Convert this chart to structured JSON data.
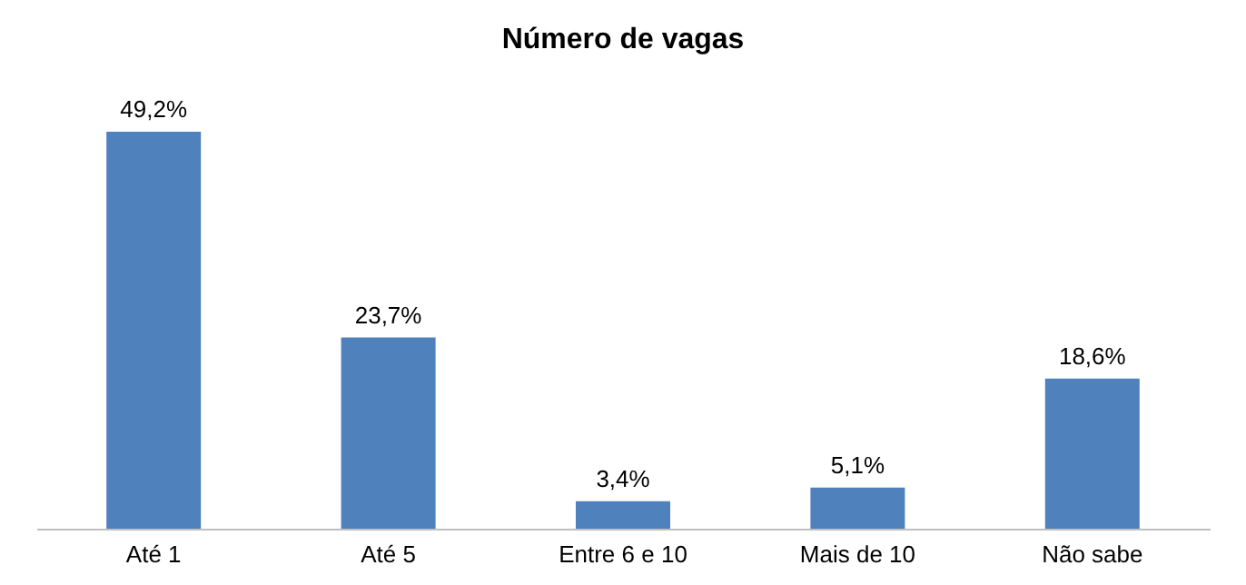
{
  "chart_data": {
    "type": "bar",
    "title": "Número de vagas",
    "categories": [
      "Até 1",
      "Até 5",
      "Entre 6 e 10",
      "Mais de 10",
      "Não sabe"
    ],
    "values": [
      49.2,
      23.7,
      3.4,
      5.1,
      18.6
    ],
    "value_labels": [
      "49,2%",
      "23,7%",
      "3,4%",
      "5,1%",
      "18,6%"
    ],
    "tick_labels": "x",
    "color": "#4f81bd",
    "grid": false
  }
}
